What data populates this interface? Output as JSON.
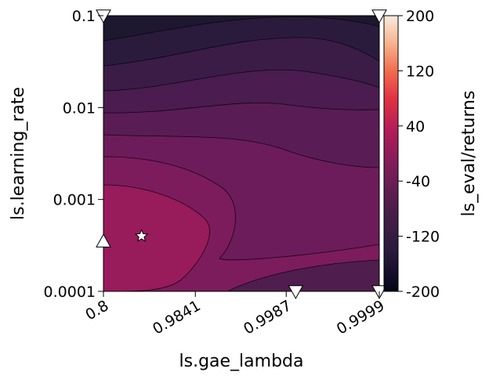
{
  "chart_data": {
    "type": "contour",
    "xlabel": "ls.gae_lambda",
    "ylabel": "ls.learning_rate",
    "colorbar_label": "ls_eval/returns",
    "x_scale": "log(1 - x)",
    "y_scale": "log",
    "xlim": [
      0.8,
      0.9999
    ],
    "ylim": [
      0.0001,
      0.1
    ],
    "x_ticks": [
      {
        "value": 0.8,
        "label": "0.8"
      },
      {
        "value": 0.9841,
        "label": "0.9841"
      },
      {
        "value": 0.9987,
        "label": "0.9987"
      },
      {
        "value": 0.9999,
        "label": "0.9999"
      }
    ],
    "y_ticks": [
      {
        "value": 0.0001,
        "label": "0.0001"
      },
      {
        "value": 0.001,
        "label": "0.001"
      },
      {
        "value": 0.01,
        "label": "0.01"
      },
      {
        "value": 0.1,
        "label": "0.1"
      }
    ],
    "colorbar": {
      "range": [
        -200,
        200
      ],
      "ticks": [
        "200",
        "120",
        "40",
        "-40",
        "-120",
        "-200"
      ],
      "colormap": "rocket"
    },
    "contour_levels": [
      -200,
      -180,
      -160,
      -140,
      -120,
      -100,
      -80,
      -60
    ],
    "best_point": {
      "marker": "star",
      "gae_lambda": 0.93,
      "learning_rate": 0.0004
    },
    "sample_points": [
      {
        "marker": "triangle-up",
        "gae_lambda": 0.8,
        "learning_rate": 0.00035
      },
      {
        "marker": "triangle-down",
        "gae_lambda": 0.999,
        "learning_rate": 0.0001
      },
      {
        "marker": "triangle-down",
        "gae_lambda": 0.9999,
        "learning_rate": 0.0001
      },
      {
        "marker": "triangle-down",
        "gae_lambda": 0.8,
        "learning_rate": 0.1
      },
      {
        "marker": "triangle-down",
        "gae_lambda": 0.9999,
        "learning_rate": 0.1
      }
    ],
    "grid": false
  }
}
